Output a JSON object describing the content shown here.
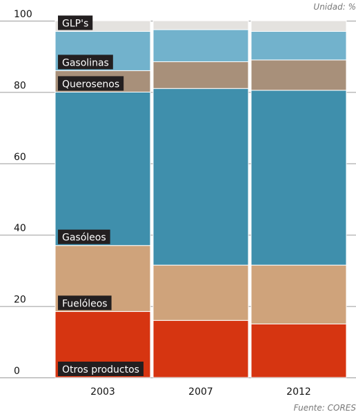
{
  "chart_data": {
    "type": "bar",
    "stacked": true,
    "unit_note": "Unidad: %",
    "source_note": "Fuente: CORES",
    "ylim": [
      0,
      100
    ],
    "yticks": [
      0,
      20,
      40,
      60,
      80,
      100
    ],
    "grid": true,
    "categories": [
      "2003",
      "2007",
      "2012"
    ],
    "series": [
      {
        "name": "Otros productos",
        "color": "#d63511",
        "values": [
          18.5,
          16,
          15
        ]
      },
      {
        "name": "Fuelóleos",
        "color": "#cfa37b",
        "values": [
          18.5,
          15.5,
          16.5
        ]
      },
      {
        "name": "Gasóleos",
        "color": "#3f8fac",
        "values": [
          43,
          49.5,
          49
        ]
      },
      {
        "name": "Querosenos",
        "color": "#a8907a",
        "values": [
          6,
          7.5,
          8.5
        ]
      },
      {
        "name": "Gasolinas",
        "color": "#72b2cc",
        "values": [
          11,
          9,
          8
        ]
      },
      {
        "name": "GLP's",
        "color": "#e4e2df",
        "values": [
          3,
          2.5,
          3
        ]
      }
    ]
  }
}
